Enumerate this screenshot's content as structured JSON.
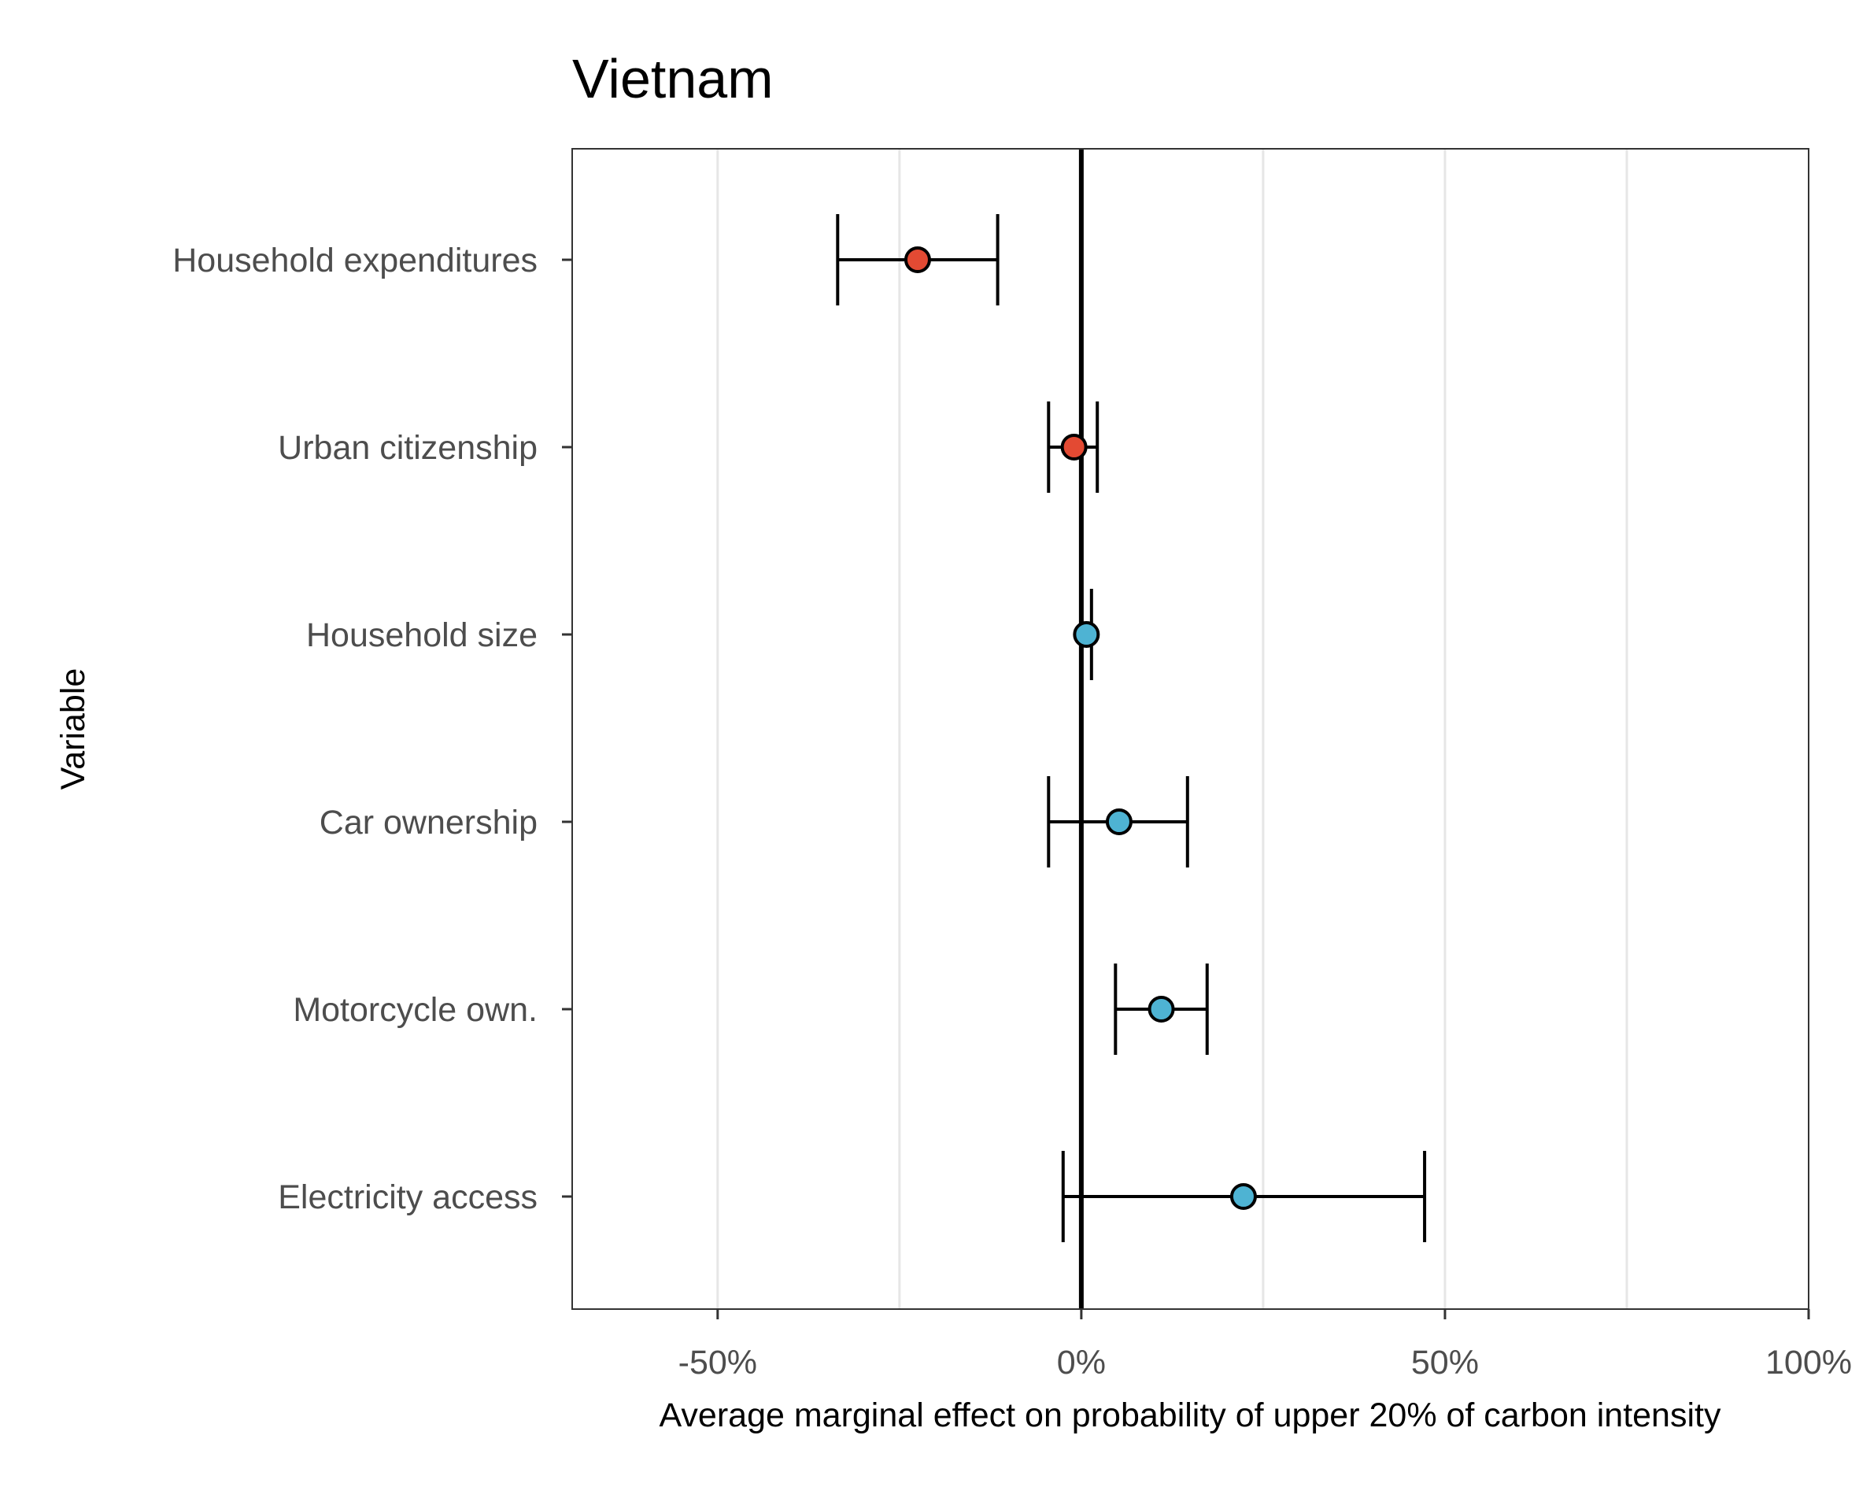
{
  "chart_data": {
    "type": "scatter",
    "title": "Vietnam",
    "xlabel": "Average marginal effect on probability of upper 20% of carbon intensity",
    "ylabel": "Variable",
    "xlim": [
      -70,
      100
    ],
    "x_ticks": [
      -50,
      0,
      50,
      100
    ],
    "x_tick_labels": [
      "-50%",
      "0%",
      "50%",
      "100%"
    ],
    "x_minor_gridlines": [
      -25,
      25,
      75
    ],
    "grid": "vertical",
    "reference_line": 0,
    "colors": {
      "negative": "#e34a33",
      "positive": "#4eb3d3"
    },
    "series": [
      {
        "category": "Household expenditures",
        "estimate": -22.5,
        "ci_low": -33.5,
        "ci_high": -11.5,
        "sign": "negative"
      },
      {
        "category": "Urban citizenship",
        "estimate": -1.0,
        "ci_low": -4.5,
        "ci_high": 2.2,
        "sign": "negative"
      },
      {
        "category": "Household size",
        "estimate": 0.7,
        "ci_low": 0.0,
        "ci_high": 1.4,
        "sign": "positive"
      },
      {
        "category": "Car ownership",
        "estimate": 5.2,
        "ci_low": -4.5,
        "ci_high": 14.6,
        "sign": "positive"
      },
      {
        "category": "Motorcycle own.",
        "estimate": 11.0,
        "ci_low": 4.7,
        "ci_high": 17.3,
        "sign": "positive"
      },
      {
        "category": "Electricity access",
        "estimate": 22.3,
        "ci_low": -2.5,
        "ci_high": 47.2,
        "sign": "positive"
      }
    ]
  }
}
